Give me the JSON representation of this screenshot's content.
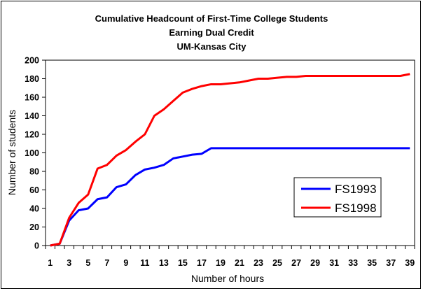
{
  "chart_data": {
    "type": "line",
    "title_lines": [
      "Cumulative Headcount of First-Time College Students",
      "Earning Dual Credit",
      "UM-Kansas City"
    ],
    "xlabel": "Number of hours",
    "ylabel": "Number of students",
    "x": [
      1,
      2,
      3,
      4,
      5,
      6,
      7,
      8,
      9,
      10,
      11,
      12,
      13,
      14,
      15,
      16,
      17,
      18,
      19,
      20,
      21,
      22,
      23,
      24,
      25,
      26,
      27,
      28,
      29,
      30,
      31,
      32,
      33,
      34,
      35,
      36,
      37,
      38,
      39
    ],
    "x_tick_labels": [
      "1",
      "3",
      "5",
      "7",
      "9",
      "11",
      "13",
      "15",
      "17",
      "19",
      "21",
      "23",
      "25",
      "27",
      "29",
      "31",
      "33",
      "35",
      "37",
      "39"
    ],
    "ylim": [
      0,
      200
    ],
    "y_ticks": [
      "0",
      "20",
      "40",
      "60",
      "80",
      "100",
      "120",
      "140",
      "160",
      "180",
      "200"
    ],
    "grid": false,
    "legend_position": "right",
    "series": [
      {
        "name": "FS1993",
        "color": "#0000ff",
        "values": [
          0,
          2,
          27,
          38,
          40,
          50,
          52,
          63,
          66,
          76,
          82,
          84,
          87,
          94,
          96,
          98,
          99,
          105,
          105,
          105,
          105,
          105,
          105,
          105,
          105,
          105,
          105,
          105,
          105,
          105,
          105,
          105,
          105,
          105,
          105,
          105,
          105,
          105,
          105
        ]
      },
      {
        "name": "FS1998",
        "color": "#ff0000",
        "values": [
          0,
          2,
          30,
          46,
          55,
          83,
          87,
          97,
          103,
          112,
          120,
          140,
          147,
          156,
          165,
          169,
          172,
          174,
          174,
          175,
          176,
          178,
          180,
          180,
          181,
          182,
          182,
          183,
          183,
          183,
          183,
          183,
          183,
          183,
          183,
          183,
          183,
          183,
          185
        ]
      }
    ]
  }
}
